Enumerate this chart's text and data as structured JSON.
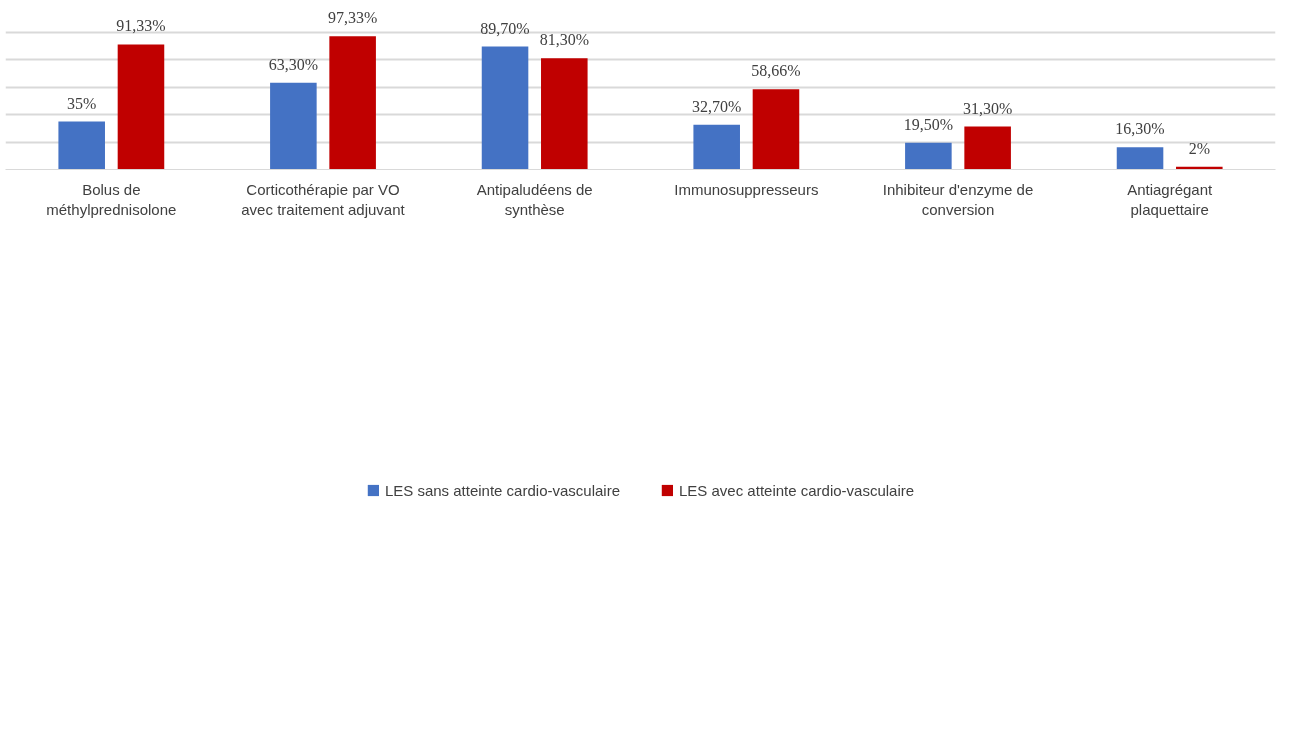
{
  "chart_data": {
    "type": "bar",
    "categories": [
      "Bolus de méthylprednisolone",
      "Corticothérapie par VO avec traitement adjuvant",
      "Antipaludéens de synthèse",
      "Immunosuppresseurs",
      "Inhibiteur d'enzyme de conversion",
      "Antiagrégant plaquettaire"
    ],
    "series": [
      {
        "name": "LES sans atteinte cardio-vasculaire",
        "color": "#4472c4",
        "values": [
          35,
          63.3,
          89.7,
          32.7,
          19.5,
          16.3
        ],
        "value_labels": [
          "35%",
          "63,30%",
          "89,70%",
          "32,70%",
          "19,50%",
          "16,30%"
        ]
      },
      {
        "name": "LES avec atteinte cardio-vasculaire",
        "color": "#c00000",
        "values": [
          91.33,
          97.33,
          81.3,
          58.66,
          31.3,
          2
        ],
        "value_labels": [
          "91,33%",
          "97,33%",
          "81,30%",
          "58,66%",
          "31,30%",
          "2%"
        ]
      }
    ],
    "grid": "y",
    "legend": "bottom",
    "tick_labels": "x"
  }
}
